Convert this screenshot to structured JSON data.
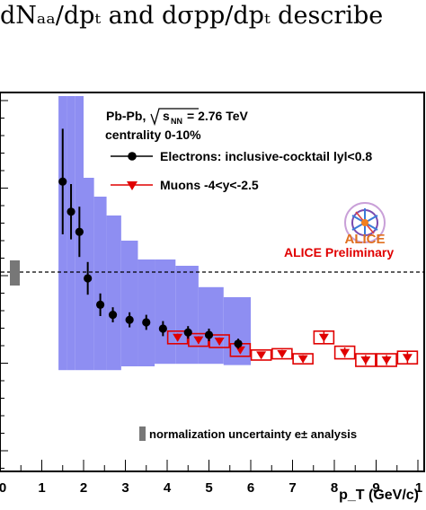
{
  "header_text": "dNₐₐ/dpₜ and dσpp/dpₜ describe",
  "chart_data": {
    "type": "scatter",
    "xlabel": "p_T (GeV/c)",
    "ylabel": "",
    "xlim": [
      0,
      10
    ],
    "x_ticks": [
      "0",
      "1",
      "2",
      "3",
      "4",
      "5",
      "6",
      "7",
      "8",
      "9",
      "1"
    ],
    "reference_line": {
      "y": 1.0,
      "style": "dashed"
    },
    "annotations": {
      "system": "Pb-Pb,",
      "energy": "= 2.76 TeV",
      "centrality": "centrality 0-10%",
      "logo": "ALICE",
      "preliminary": "ALICE Preliminary",
      "norm_label": "normalization uncertainty e± analysis"
    },
    "series": [
      {
        "name": "Electrons: inclusive-cocktail lyl<0.8",
        "color": "#000000",
        "marker": "circle",
        "x": [
          1.5,
          1.7,
          1.9,
          2.1,
          2.4,
          2.7,
          3.1,
          3.5,
          3.9,
          4.5,
          5.0,
          5.7
        ],
        "y": [
          1.72,
          1.48,
          1.32,
          0.95,
          0.74,
          0.66,
          0.62,
          0.6,
          0.55,
          0.52,
          0.5,
          0.43
        ],
        "err": [
          0.42,
          0.22,
          0.2,
          0.13,
          0.09,
          0.06,
          0.06,
          0.06,
          0.06,
          0.05,
          0.05,
          0.04
        ],
        "sys_low": [
          0.22,
          0.22,
          0.22,
          0.22,
          0.22,
          0.22,
          0.25,
          0.25,
          0.27,
          0.27,
          0.27,
          0.26
        ],
        "sys_high": [
          2.4,
          2.4,
          2.4,
          1.75,
          1.6,
          1.45,
          1.25,
          1.1,
          1.1,
          1.05,
          0.88,
          0.8
        ]
      },
      {
        "name": "Muons  -4<y<-2.5",
        "color": "#e00000",
        "marker": "triangle-down",
        "x": [
          4.25,
          4.75,
          5.25,
          5.75,
          6.25,
          6.75,
          7.25,
          7.75,
          8.25,
          8.75,
          9.25,
          9.75
        ],
        "y": [
          0.48,
          0.46,
          0.45,
          0.38,
          0.34,
          0.35,
          0.31,
          0.48,
          0.36,
          0.3,
          0.3,
          0.32
        ],
        "err": [
          0.03,
          0.03,
          0.03,
          0.03,
          0.02,
          0.03,
          0.03,
          0.05,
          0.04,
          0.04,
          0.04,
          0.05
        ],
        "sys": [
          0.05,
          0.05,
          0.05,
          0.05,
          0.04,
          0.04,
          0.04,
          0.05,
          0.05,
          0.05,
          0.05,
          0.05
        ]
      }
    ],
    "colors": {
      "systematic_band": "#8e8ef2",
      "normalization_box": "#777777"
    }
  }
}
